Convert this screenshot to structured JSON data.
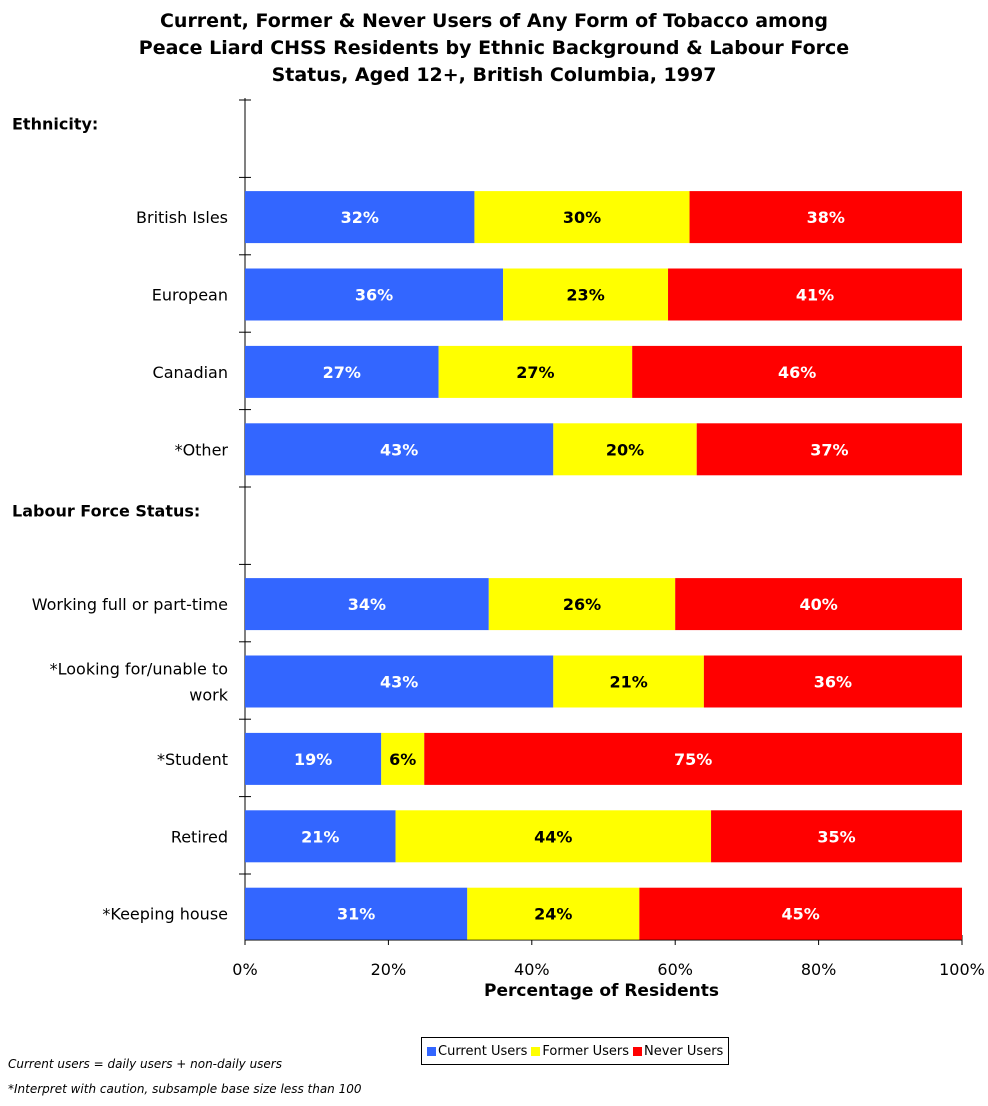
{
  "chart_data": {
    "type": "bar",
    "orientation": "horizontal",
    "stacked": true,
    "title_lines": [
      "Current, Former & Never Users of Any Form of Tobacco among",
      "Peace Liard CHSS Residents by Ethnic Background & Labour Force",
      "Status, Aged 12+, British Columbia, 1997"
    ],
    "xlabel": "Percentage of Residents",
    "ylabel": "",
    "xlim": [
      0,
      100
    ],
    "x_ticks": [
      "0%",
      "20%",
      "40%",
      "60%",
      "80%",
      "100%"
    ],
    "grid": false,
    "legend_position": "bottom",
    "series": [
      {
        "name": "Current Users",
        "color": "#3366ff",
        "label_color": "#ffffff"
      },
      {
        "name": "Former Users",
        "color": "#ffff00",
        "label_color": "#000000"
      },
      {
        "name": "Never Users",
        "color": "#ff0000",
        "label_color": "#ffffff"
      }
    ],
    "rows": [
      {
        "type": "header",
        "label": "Ethnicity:"
      },
      {
        "type": "bar",
        "label": "British Isles",
        "values": [
          32,
          30,
          38
        ]
      },
      {
        "type": "bar",
        "label": "European",
        "values": [
          36,
          23,
          41
        ]
      },
      {
        "type": "bar",
        "label": "Canadian",
        "values": [
          27,
          27,
          46
        ]
      },
      {
        "type": "bar",
        "label": "*Other",
        "values": [
          43,
          20,
          37
        ]
      },
      {
        "type": "header",
        "label": "Labour Force Status:"
      },
      {
        "type": "bar",
        "label": "Working full or part-time",
        "values": [
          34,
          26,
          40
        ]
      },
      {
        "type": "bar",
        "label": "*Looking for/unable to work",
        "label_lines": [
          "*Looking for/unable to",
          "work"
        ],
        "values": [
          43,
          21,
          36
        ]
      },
      {
        "type": "bar",
        "label": "*Student",
        "values": [
          19,
          6,
          75
        ]
      },
      {
        "type": "bar",
        "label": "Retired",
        "values": [
          21,
          44,
          35
        ]
      },
      {
        "type": "bar",
        "label": "*Keeping house",
        "values": [
          31,
          24,
          45
        ]
      }
    ]
  },
  "footnotes": {
    "users_def": "Current users = daily users + non-daily users",
    "caution": "*Interpret with caution, subsample base size less than 100"
  }
}
